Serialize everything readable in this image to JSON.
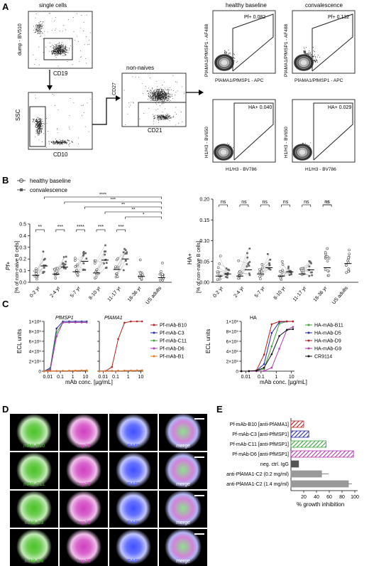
{
  "panelA": {
    "letter": "A",
    "single_cells": "single cells",
    "dump_label": "dump - BV510",
    "cd19": "CD19",
    "gate_95": "95.0",
    "ssc": "SSC",
    "cd10": "CD10",
    "gate_743": "74.3",
    "non_naives": "non-naives",
    "cd27": "CD27",
    "cd21": "CD21",
    "healthy_baseline": "healthy baseline",
    "convalescence": "convalescence",
    "pf_y": "PfAMA1/PfMSP1 - AF488",
    "pf_x": "PfAMA1/PfMSP1 - APC",
    "pf_healthy": "Pf+ 0.082",
    "pf_conv": "Pf+ 0.132",
    "ha_y": "H1/H3 - BV650",
    "ha_x": "H1/H3 - BV786",
    "ha_healthy": "HA+ 0.040",
    "ha_conv": "HA+ 0.029"
  },
  "panelB": {
    "letter": "B",
    "legend": [
      "healthy baseline",
      "convalescence"
    ],
    "left_ylabel": "Pf+",
    "left_ylabel2": "[% of non-naive B cells]",
    "right_ylabel": "HA+",
    "right_ylabel2": "[% of non-naive B cells]",
    "sig_left": [
      "**",
      "***",
      "****",
      "***",
      "***"
    ],
    "sig_right": [
      "ns",
      "ns",
      "ns",
      "ns",
      "ns",
      "ns"
    ],
    "sig_bracket": [
      "****",
      "***",
      "**",
      "**",
      "*"
    ]
  },
  "panelC": {
    "letter": "C",
    "ylabel": "ECL units",
    "xlabel": "mAb conc. [µg/mL]",
    "msp1": "PfMSP1",
    "ama1": "PfAMA1",
    "ha": "HA",
    "legend_pf": [
      "Pf-mAb-B10",
      "Pf-mAb-C3",
      "Pf-mAb-C11",
      "Pf-mAb-D6",
      "Pf-mAb-B1"
    ],
    "legend_ha": [
      "HA-mAb-B11",
      "HA-mAb-D5",
      "HA-mAb-D9",
      "HA-mAb-G9",
      "CR9114"
    ]
  },
  "panelD": {
    "letter": "D",
    "rows": [
      "mAB-B10",
      "mAB-C11",
      "mAB-C3",
      "mAB-D6"
    ],
    "hsp70": "hsp70",
    "dapi": "DAPI",
    "merge": "merge"
  },
  "panelE": {
    "letter": "E",
    "xlabel": "% growth inhibition",
    "labels": [
      "Pf-mAb-B10 [anti-PfAMA1]",
      "Pf-mAb-C3 [anti-PfMSP1]",
      "Pf-mAb-C11 [anti-PfMSP1]",
      "Pf-mAb-D6 [anti-PfMSP1]",
      "neg. ctrl. IgG",
      "anti-PfAMA1-C2 (0.2 mg/ml)",
      "anti-PfAMA1-C2 (1.4 mg/ml)"
    ]
  },
  "chart_data": [
    {
      "type": "scatter",
      "ylabel": "Pf+ [% of non-naive B cells]",
      "categories": [
        "0-2 yr",
        "2-4 yr",
        "5-7 yr",
        "8-10 yr",
        "11-17 yr",
        "18-36 yr",
        "US adults"
      ],
      "ylim": [
        0,
        0.5
      ],
      "yticks": [
        0.0,
        0.1,
        0.2,
        0.3,
        0.4,
        0.5
      ],
      "series": [
        {
          "name": "healthy baseline",
          "medians": [
            0.06,
            0.07,
            0.09,
            0.08,
            0.11,
            0.05,
            0.04
          ]
        },
        {
          "name": "convalescence",
          "medians": [
            0.14,
            0.13,
            0.18,
            0.19,
            0.2
          ]
        }
      ]
    },
    {
      "type": "scatter",
      "ylabel": "HA+ [% of non-naive B cells]",
      "categories": [
        "0-2 yr",
        "2-4 yr",
        "5-7 yr",
        "8-10 yr",
        "11-17 yr",
        "18-36 yr",
        "US adults"
      ],
      "ylim": [
        0,
        0.2
      ],
      "yticks": [
        0.0,
        0.05,
        0.1,
        0.15,
        0.2
      ],
      "series": [
        {
          "name": "healthy baseline",
          "medians": [
            0.015,
            0.015,
            0.02,
            0.015,
            0.02,
            0.035,
            0.045
          ]
        },
        {
          "name": "convalescence",
          "medians": [
            0.02,
            0.03,
            0.035,
            0.025,
            0.03
          ]
        }
      ]
    },
    {
      "type": "line",
      "xlabel": "mAb conc. [µg/mL]",
      "ylabel": "ECL units",
      "xticks": [
        "0.01",
        "0.1",
        "1",
        "10"
      ],
      "yticks": [
        "0",
        "2×10^5",
        "4×10^5",
        "6×10^5",
        "8×10^5",
        "1×10^6"
      ],
      "ylim": [
        0,
        1000000
      ]
    },
    {
      "type": "bar",
      "xlabel": "% growth inhibition",
      "categories": [
        "Pf-mAb-B10 [anti-PfAMA1]",
        "Pf-mAb-C3 [anti-PfMSP1]",
        "Pf-mAb-C11 [anti-PfMSP1]",
        "Pf-mAb-D6 [anti-PfMSP1]",
        "neg. ctrl. IgG",
        "anti-PfAMA1-C2 (0.2 mg/ml)",
        "anti-PfAMA1-C2 (1.4 mg/ml)"
      ],
      "values": [
        20,
        28,
        55,
        98,
        12,
        48,
        90
      ],
      "xlim": [
        0,
        100
      ],
      "xticks": [
        20,
        40,
        60,
        80,
        100
      ],
      "colors": [
        "#b22222",
        "#2a2aa0",
        "#3aa33a",
        "#b03ab0",
        "#555555",
        "#999999",
        "#999999"
      ]
    }
  ]
}
